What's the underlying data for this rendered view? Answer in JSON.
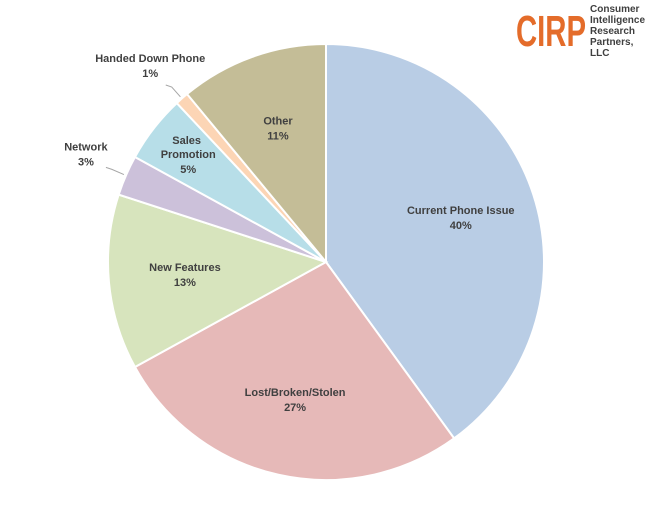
{
  "chart_data": {
    "type": "pie",
    "logo": "CIRP",
    "logo_text": "Consumer Intelligence Research Partners, LLC",
    "categories": [
      "Current Phone Issue",
      "Lost/Broken/Stolen",
      "New Features",
      "Network",
      "Sales Promotion",
      "Handed Down Phone",
      "Other"
    ],
    "values": [
      40,
      27,
      13,
      3,
      5,
      1,
      11
    ],
    "value_labels": [
      "40%",
      "27%",
      "13%",
      "3%",
      "5%",
      "1%",
      "11%"
    ],
    "colors": [
      "#b9cde5",
      "#e6b9b8",
      "#d7e4bd",
      "#ccc1da",
      "#b7dee8",
      "#fcd5b5",
      "#c4bd97"
    ]
  }
}
